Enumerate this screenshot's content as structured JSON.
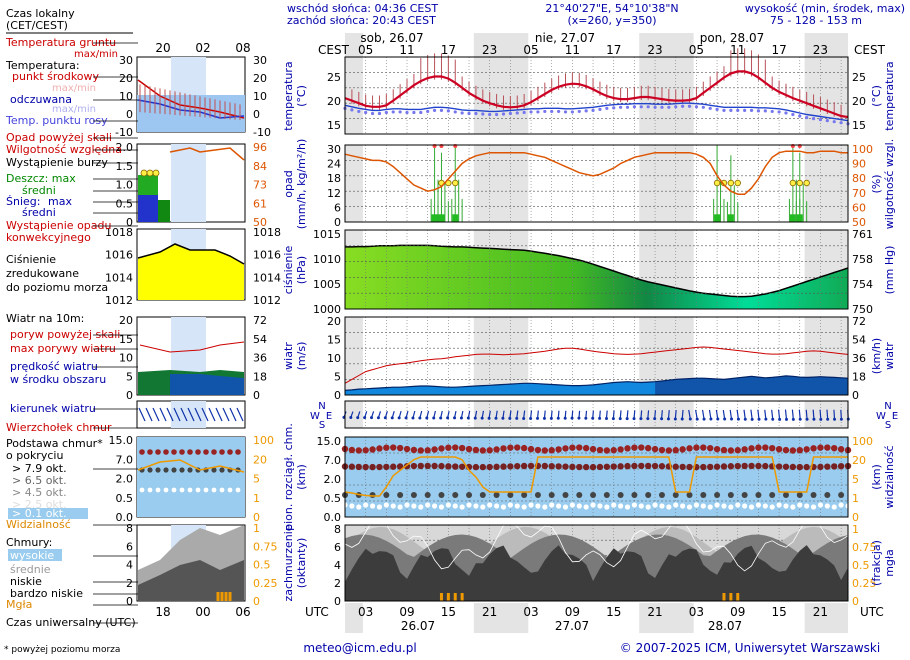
{
  "header": {
    "sunrise": "wschód słońca: 04:36 CEST",
    "sunset": "zachód słońca: 20:43 CEST",
    "coords": "21°40'27\"E, 54°10'38\"N",
    "grid": "(x=260,  y=350)",
    "height_label": "wysokość (min, środek, max)",
    "height_values": "75 - 128 - 153 m"
  },
  "legend": {
    "local_time": "Czas lokalny",
    "local_time_sub": "(CET/CEST)",
    "ground_temp": "Temperatura gruntu",
    "max_min": "max/min",
    "temperature": "Temperatura:",
    "mid_point": "punkt środkowy",
    "max_min_faded": "max/min",
    "perceived": "odczuwana",
    "max_min_faded2": "max/min",
    "dew_point": "Temp. punktu rosy",
    "precip_above": "Opad powyżej skali",
    "humidity": "Wilgotność względna",
    "storm": "Wystąpienie burzy",
    "rain": "Deszcz: max",
    "rain_mid": "średni",
    "snow": "Śnieg:",
    "snow_max": "max",
    "snow_mid": "średni",
    "conv": "Wystąpienie opadu",
    "conv2": "konwekcyjnego",
    "pressure1": "Ciśnienie",
    "pressure2": "zredukowane",
    "pressure3": "do poziomu morza",
    "wind10": "Wiatr na 10m:",
    "gust_above": "poryw powyżej skali",
    "gust_max": "max porywy wiatru",
    "wind_speed1": "prędkość wiatru",
    "wind_speed2": "w środku obszaru",
    "wind_dir": "kierunek wiatru",
    "cloud_top": "Wierzchołek chmur",
    "cloud_base1": "Podstawa chmur*",
    "cloud_base2": "o pokryciu",
    "okt79": "> 7.9 okt.",
    "okt65": "> 6.5 okt.",
    "okt45": "> 4.5 okt.",
    "okt25": "> 2.5 okt.",
    "okt01": "> 0.1 okt.",
    "visibility": "Widzialność",
    "clouds": "Chmury:",
    "high": "wysokie",
    "mid": "średnie",
    "low": "niskie",
    "very_low": "bardzo niskie",
    "fog": "Mgła",
    "utc_time": "Czas uniwersalny (UTC)",
    "footnote": "* powyżej poziomu morza",
    "mini_top_ticks": [
      "20",
      "02",
      "08"
    ],
    "mini_bottom_ticks": [
      "18",
      "00",
      "06"
    ]
  },
  "axes": {
    "cest": "CEST",
    "utc": "UTC",
    "temp": "temperatura",
    "temp_unit": "(°C)",
    "precip1": "opad",
    "precip2": "(mm/h, kg/m²/h)",
    "hum1": "(%)",
    "hum2": "wilgotność wzgl.",
    "press1": "ciśnienie",
    "press2": "(hPa)",
    "press_mm": "(mm Hg)",
    "wind1": "wiatr",
    "wind2": "(m/s)",
    "wind_kmh1": "(km/h)",
    "wind_kmh2": "wiatr",
    "cloud1": "pion. rozciągł. chm.",
    "cloud2": "(km)",
    "vis1": "(km)",
    "vis2": "widzialność",
    "cover1": "zachmurzenie",
    "cover2": "(oktanty)",
    "fog1": "(frakcja)",
    "fog2": "mgła",
    "compass_n": "N",
    "compass_w": "W",
    "compass_s": "S",
    "compass_e": "E"
  },
  "time": {
    "days_top": [
      "sob, 26.07",
      "nie, 27.07",
      "pon, 28.07"
    ],
    "days_bottom": [
      "26.07",
      "27.07",
      "28.07"
    ],
    "cest_ticks": [
      "05",
      "11",
      "17",
      "23",
      "05",
      "11",
      "17",
      "23",
      "05",
      "11",
      "17",
      "23",
      "05"
    ],
    "utc_ticks": [
      "03",
      "09",
      "15",
      "21",
      "03",
      "09",
      "15",
      "21",
      "03",
      "09",
      "15",
      "21",
      "03"
    ]
  },
  "scales": {
    "temp_left": [
      "25",
      "20",
      "15"
    ],
    "temp_right": [
      "25",
      "20",
      "15"
    ],
    "precip_left": [
      "30",
      "24",
      "18",
      "12",
      "6",
      "0"
    ],
    "hum_right": [
      "100",
      "90",
      "80",
      "70",
      "60",
      "50"
    ],
    "press_left": [
      "1015",
      "1010",
      "1005",
      "1000"
    ],
    "press_right": [
      "761",
      "758",
      "754",
      "750"
    ],
    "wind_left": [
      "20",
      "15",
      "10",
      "5",
      "0"
    ],
    "wind_right": [
      "72",
      "54",
      "36",
      "18",
      "0"
    ],
    "cloud_left": [
      "15.0",
      "7.0",
      "2.0",
      "0.5",
      "0.0"
    ],
    "vis_right": [
      "100",
      "20",
      "5",
      "1",
      "0"
    ],
    "cover_left": [
      "8",
      "6",
      "4",
      "2",
      "0"
    ],
    "fog_right": [
      "1",
      "0.75",
      "0.5",
      "0.25",
      "0"
    ],
    "mini_temp_left": [
      "30",
      "20",
      "10",
      "0",
      "-10"
    ],
    "mini_temp_right": [
      "30",
      "20",
      "10",
      "0",
      "-10"
    ],
    "mini_precip_left": [
      "2.0",
      "1.5",
      "1.0",
      "0.5",
      "0"
    ],
    "mini_hum_right": [
      "96",
      "84",
      "73",
      "61",
      "50"
    ],
    "mini_press_left": [
      "1018",
      "1016",
      "1014",
      "1012"
    ],
    "mini_press_right": [
      "1018",
      "1016",
      "1014",
      "1012"
    ],
    "mini_wind_left": [
      "20",
      "15",
      "10",
      "5",
      "0"
    ],
    "mini_wind_right": [
      "72",
      "54",
      "36",
      "18",
      "0"
    ],
    "mini_cloud_left": [
      "15.0",
      "7.0",
      "2.0",
      "0.5",
      "0.0"
    ],
    "mini_vis_right": [
      "100",
      "20",
      "5",
      "1",
      "0"
    ],
    "mini_cover_left": [
      "8",
      "6",
      "4",
      "2",
      "0"
    ],
    "mini_fog_right": [
      "1",
      "0.75",
      "0.5",
      "0.25",
      "0"
    ]
  },
  "footer": {
    "email": "meteo@icm.edu.pl",
    "copyright": "© 2007-2025 ICM, Uniwersytet Warszawski"
  },
  "colors": {
    "temperature": "#cc0022",
    "dew_point": "#7777ee",
    "humidity": "#dd5500",
    "rain": "#22aa22",
    "pressure_high": "#88dd22",
    "pressure_low": "#00cc88",
    "wind": "#0088dd",
    "gust": "#cc0000",
    "cloud_sky": "#99ccee",
    "visibility": "#ee9900",
    "label_blue": "#0000aa",
    "label_red": "#cc0000"
  },
  "chart_data": {
    "type": "line",
    "hours_utc_from": "2025-07-26 00:00",
    "step_hours": 1,
    "temperature_c": [
      20,
      19.5,
      19,
      18.5,
      18.3,
      18.3,
      18.6,
      19.5,
      20.5,
      21.5,
      22.5,
      23.3,
      23.9,
      24.2,
      24.2,
      23.8,
      23,
      22,
      21,
      20.2,
      19.5,
      19,
      18.6,
      18.3,
      18.2,
      18.3,
      18.6,
      19.2,
      20,
      20.8,
      21.6,
      22.2,
      22.6,
      22.8,
      22.7,
      22.3,
      21.7,
      21,
      20.4,
      20,
      19.8,
      19.8,
      20,
      20.2,
      20.2,
      20,
      19.8,
      19.6,
      19.5,
      19.5,
      19.6,
      20,
      21,
      22,
      23,
      24,
      24.8,
      25.2,
      25.2,
      24.8,
      24,
      23,
      22,
      21.2,
      20.6,
      20,
      19.5,
      19,
      18.5,
      18,
      17.5,
      17,
      16.5,
      16.3
    ],
    "dew_point_c": [
      18,
      17.7,
      17.4,
      17.2,
      17,
      17,
      17.2,
      17.3,
      17.3,
      17.2,
      17.2,
      17.2,
      17.4,
      17.6,
      17.6,
      17.5,
      17.3,
      17.1,
      17,
      17,
      16.9,
      16.8,
      16.8,
      16.9,
      17,
      17.1,
      17.2,
      17.3,
      17.3,
      17.4,
      17.4,
      17.4,
      17.3,
      17.3,
      17.4,
      17.5,
      17.6,
      17.8,
      18,
      18.1,
      18.2,
      18.2,
      18.3,
      18.3,
      18.3,
      18.2,
      18.2,
      18.2,
      18.3,
      18.4,
      18.4,
      18.3,
      18.2,
      18,
      17.8,
      17.6,
      17.6,
      17.6,
      17.6,
      17.6,
      17.5,
      17.5,
      17.4,
      17.3,
      17.1,
      16.8,
      16.5,
      16.2,
      16,
      15.8,
      15.6,
      15.4,
      15.2,
      15
    ],
    "humidity_pct": [
      94,
      93,
      92,
      91,
      90,
      90,
      89,
      86,
      82,
      78,
      74,
      72,
      70,
      71,
      73,
      78,
      83,
      88,
      91,
      93,
      94,
      95,
      95,
      95,
      95,
      95,
      95,
      94,
      93,
      92,
      90,
      88,
      86,
      84,
      82,
      81,
      80,
      81,
      83,
      85,
      88,
      90,
      92,
      93,
      94,
      95,
      95,
      95,
      95,
      95,
      95,
      94,
      92,
      88,
      80,
      74,
      70,
      68,
      68,
      72,
      78,
      86,
      92,
      95,
      96,
      96,
      96,
      95,
      95,
      96,
      96,
      96,
      95,
      95
    ],
    "pressure_hpa": [
      1011.5,
      1011.5,
      1011.6,
      1011.6,
      1011.7,
      1011.8,
      1011.8,
      1011.8,
      1011.9,
      1011.9,
      1011.9,
      1011.9,
      1011.9,
      1011.8,
      1011.7,
      1011.6,
      1011.5,
      1011.5,
      1011.4,
      1011.3,
      1011.2,
      1011.1,
      1011,
      1010.9,
      1010.8,
      1010.7,
      1010.6,
      1010.4,
      1010.1,
      1009.8,
      1009.5,
      1009.2,
      1008.8,
      1008.4,
      1008,
      1007.5,
      1006.9,
      1006.3,
      1005.7,
      1005.1,
      1004.5,
      1003.9,
      1003.3,
      1002.7,
      1002.2,
      1001.8,
      1001.4,
      1001,
      1000.6,
      1000.2,
      999.8,
      999.5,
      999.2,
      999,
      998.8,
      998.6,
      998.4,
      998.3,
      998.3,
      998.4,
      998.7,
      999,
      999.4,
      999.9,
      1000.5,
      1001.1,
      1001.7,
      1002.3,
      1002.9,
      1003.5,
      1004.1,
      1004.7,
      1005.3,
      1005.9
    ],
    "wind_ms": [
      1.2,
      1.3,
      1.5,
      1.6,
      1.7,
      1.8,
      1.9,
      2,
      2,
      2.1,
      2.2,
      2.3,
      2.3,
      2.2,
      2.1,
      2,
      2,
      2.1,
      2.2,
      2.3,
      2.4,
      2.5,
      2.6,
      2.7,
      2.8,
      2.9,
      3,
      3,
      2.9,
      2.8,
      2.7,
      2.6,
      2.5,
      2.4,
      2.4,
      2.5,
      2.6,
      2.8,
      3,
      3.2,
      3.3,
      3.4,
      3.3,
      3.2,
      3.3,
      3.4,
      3.6,
      3.8,
      4,
      4.1,
      4.2,
      4.3,
      4.3,
      4.2,
      4.1,
      4,
      4.2,
      4.4,
      4.6,
      4.8,
      4.6,
      4.4,
      4.5,
      4.7,
      4.9,
      4.8,
      4.6,
      4.5,
      4.6,
      4.7,
      4.6,
      4.5,
      4.4,
      4.3
    ],
    "gust_ms": [
      3,
      4,
      5,
      6,
      6.5,
      7,
      7.5,
      7.8,
      8,
      8.2,
      8.5,
      8.8,
      9,
      9.2,
      9.3,
      9.5,
      9.8,
      10,
      10.2,
      10.4,
      10.5,
      10.5,
      10.4,
      10.3,
      10.4,
      10.5,
      10.6,
      10.8,
      11,
      11.2,
      11.5,
      11.8,
      12,
      12,
      11.8,
      11.5,
      11.2,
      11,
      10.8,
      10.6,
      10.5,
      10.4,
      10.5,
      10.6,
      10.8,
      11,
      11.2,
      11.4,
      11.6,
      11.8,
      12,
      12.2,
      12.3,
      12.2,
      12,
      11.8,
      11.6,
      11.4,
      11.2,
      11,
      10.8,
      10.6,
      10.5,
      10.5,
      10.6,
      10.8,
      11,
      11.2,
      11.3,
      11.2,
      11,
      10.8,
      10.6,
      10.4
    ],
    "visibility_km": [
      2,
      1.8,
      1.5,
      1.3,
      1.2,
      1.2,
      3,
      6,
      10,
      14,
      18,
      20,
      20,
      20,
      20,
      20,
      20,
      18,
      10,
      5,
      3,
      2,
      2,
      2,
      2,
      2,
      2,
      2,
      20,
      20,
      20,
      20,
      20,
      20,
      20,
      20,
      20,
      20,
      20,
      20,
      20,
      20,
      20,
      20,
      20,
      20,
      20,
      20,
      2,
      2,
      2,
      20,
      20,
      20,
      20,
      20,
      20,
      20,
      20,
      20,
      20,
      20,
      20,
      2,
      2,
      2,
      2,
      2,
      20,
      20,
      20,
      20,
      20,
      20
    ],
    "rain_mm_h_peaks": [
      {
        "hour": 13,
        "value": 30
      },
      {
        "hour": 14,
        "value": 27
      },
      {
        "hour": 16,
        "value": 30
      },
      {
        "hour": 54,
        "value": 30
      },
      {
        "hour": 56,
        "value": 26
      },
      {
        "hour": 65,
        "value": 30
      },
      {
        "hour": 66,
        "value": 27
      }
    ]
  }
}
